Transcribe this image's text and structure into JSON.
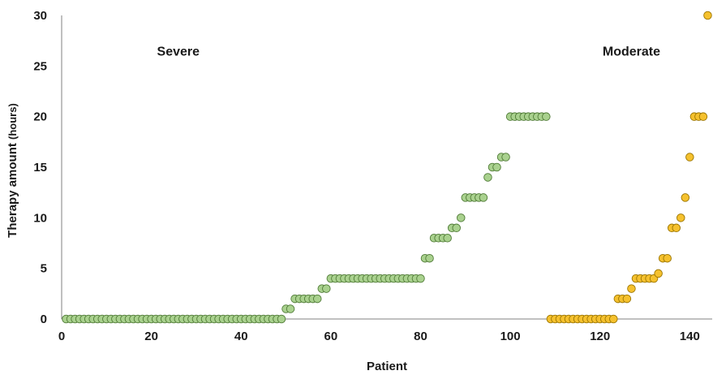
{
  "chart_data": {
    "type": "scatter",
    "title": "",
    "xlabel": "Patient",
    "ylabel_main": "Therapy amount",
    "ylabel_unit": "(hours)",
    "xlim": [
      0,
      145
    ],
    "ylim": [
      0,
      30
    ],
    "xticks": [
      0,
      20,
      40,
      60,
      80,
      100,
      120,
      140
    ],
    "yticks": [
      0,
      5,
      10,
      15,
      20,
      25,
      30
    ],
    "grid": false,
    "annotations": [
      {
        "text": "Severe",
        "x": 26,
        "y": 26.5
      },
      {
        "text": "Moderate",
        "x": 127,
        "y": 26.5
      }
    ],
    "series": [
      {
        "color": "#a9d18e",
        "stroke": "#4f7a36",
        "x": [
          1,
          2,
          3,
          4,
          5,
          6,
          7,
          8,
          9,
          10,
          11,
          12,
          13,
          14,
          15,
          16,
          17,
          18,
          19,
          20,
          21,
          22,
          23,
          24,
          25,
          26,
          27,
          28,
          29,
          30,
          31,
          32,
          33,
          34,
          35,
          36,
          37,
          38,
          39,
          40,
          41,
          42,
          43,
          44,
          45,
          46,
          47,
          48,
          49,
          50,
          51,
          52,
          53,
          54,
          55,
          56,
          57,
          58,
          59,
          60,
          61,
          62,
          63,
          64,
          65,
          66,
          67,
          68,
          69,
          70,
          71,
          72,
          73,
          74,
          75,
          76,
          77,
          78,
          79,
          80,
          81,
          82,
          83,
          84,
          85,
          86,
          87,
          88,
          89,
          90,
          91,
          92,
          93,
          94,
          95,
          96,
          97,
          98,
          99,
          100,
          101,
          102,
          103,
          104,
          105,
          106,
          107,
          108
        ],
        "y": [
          0,
          0,
          0,
          0,
          0,
          0,
          0,
          0,
          0,
          0,
          0,
          0,
          0,
          0,
          0,
          0,
          0,
          0,
          0,
          0,
          0,
          0,
          0,
          0,
          0,
          0,
          0,
          0,
          0,
          0,
          0,
          0,
          0,
          0,
          0,
          0,
          0,
          0,
          0,
          0,
          0,
          0,
          0,
          0,
          0,
          0,
          0,
          0,
          0,
          1,
          1,
          2,
          2,
          2,
          2,
          2,
          2,
          3,
          3,
          4,
          4,
          4,
          4,
          4,
          4,
          4,
          4,
          4,
          4,
          4,
          4,
          4,
          4,
          4,
          4,
          4,
          4,
          4,
          4,
          4,
          6,
          6,
          8,
          8,
          8,
          8,
          9,
          9,
          10,
          12,
          12,
          12,
          12,
          12,
          14,
          15,
          15,
          16,
          16,
          20,
          20,
          20,
          20,
          20,
          20,
          20,
          20,
          20
        ]
      },
      {
        "color": "#f5c12e",
        "stroke": "#9a7400",
        "x": [
          109,
          110,
          111,
          112,
          113,
          114,
          115,
          116,
          117,
          118,
          119,
          120,
          121,
          122,
          123,
          124,
          125,
          126,
          127,
          128,
          129,
          130,
          131,
          132,
          133,
          134,
          135,
          136,
          137,
          138,
          139,
          140,
          141,
          142,
          143,
          144
        ],
        "y": [
          0,
          0,
          0,
          0,
          0,
          0,
          0,
          0,
          0,
          0,
          0,
          0,
          0,
          0,
          0,
          2,
          2,
          2,
          3,
          4,
          4,
          4,
          4,
          4,
          4.5,
          6,
          6,
          9,
          9,
          10,
          12,
          16,
          20,
          20,
          20,
          30
        ]
      }
    ]
  }
}
